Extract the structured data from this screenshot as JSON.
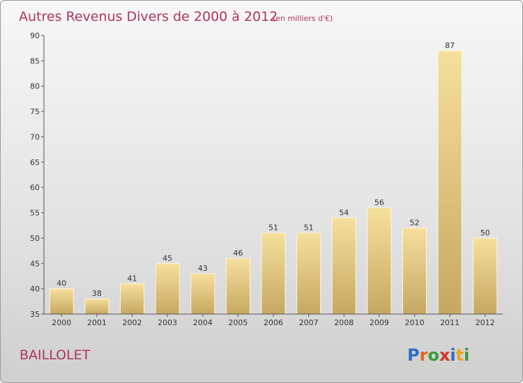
{
  "chart_data": {
    "type": "bar",
    "title": "Autres Revenus Divers de 2000 à 2012",
    "subtitle": "(en milliers d'€)",
    "categories": [
      "2000",
      "2001",
      "2002",
      "2003",
      "2004",
      "2005",
      "2006",
      "2007",
      "2008",
      "2009",
      "2010",
      "2011",
      "2012"
    ],
    "values": [
      40,
      38,
      41,
      45,
      43,
      46,
      51,
      51,
      54,
      56,
      52,
      87,
      50
    ],
    "ylim": [
      35,
      90
    ],
    "yticks": [
      35,
      40,
      45,
      50,
      55,
      60,
      65,
      70,
      75,
      80,
      85,
      90
    ],
    "grid": false,
    "xlabel": "",
    "ylabel": ""
  },
  "commune": "BAILLOLET",
  "logo": {
    "text": "Proxiti"
  },
  "colors": {
    "title": "#b0345a",
    "bar_light": "#f5dc98",
    "bar_dark": "#c8ab64",
    "axis": "#444444"
  }
}
